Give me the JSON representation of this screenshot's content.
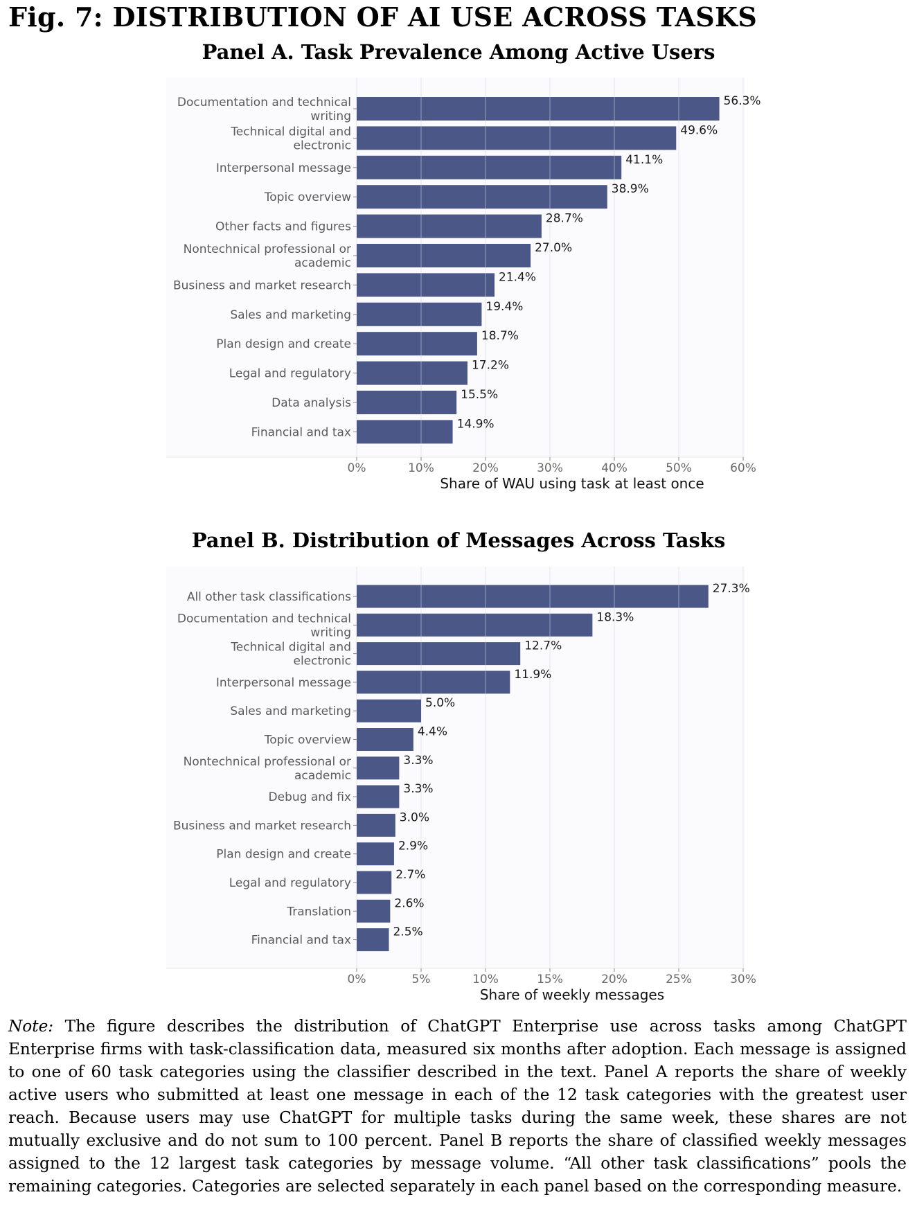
{
  "figure": {
    "title": "Fig. 7: DISTRIBUTION OF AI USE ACROSS TASKS"
  },
  "chart_data": [
    {
      "type": "bar",
      "orientation": "horizontal",
      "title": "Panel A. Task Prevalence Among Active Users",
      "xlabel": "Share of WAU using task at least once",
      "ylabel": "",
      "xlim": [
        0,
        60
      ],
      "xticks": [
        "0%",
        "10%",
        "20%",
        "30%",
        "40%",
        "50%",
        "60%"
      ],
      "grid": true,
      "bar_color": "#4a5787",
      "categories": [
        "Documentation and technical writing",
        "Technical digital and electronic",
        "Interpersonal message",
        "Topic overview",
        "Other facts and figures",
        "Nontechnical professional or academic",
        "Business and market research",
        "Sales and marketing",
        "Plan design and create",
        "Legal and regulatory",
        "Data analysis",
        "Financial and tax"
      ],
      "values": [
        56.3,
        49.6,
        41.1,
        38.9,
        28.7,
        27.0,
        21.4,
        19.4,
        18.7,
        17.2,
        15.5,
        14.9
      ],
      "labels": [
        "56.3%",
        "49.6%",
        "41.1%",
        "38.9%",
        "28.7%",
        "27.0%",
        "21.4%",
        "19.4%",
        "18.7%",
        "17.2%",
        "15.5%",
        "14.9%"
      ]
    },
    {
      "type": "bar",
      "orientation": "horizontal",
      "title": "Panel B. Distribution of Messages Across Tasks",
      "xlabel": "Share of weekly messages",
      "ylabel": "",
      "xlim": [
        0,
        30
      ],
      "xticks": [
        "0%",
        "5%",
        "10%",
        "15%",
        "20%",
        "25%",
        "30%"
      ],
      "grid": true,
      "bar_color": "#4a5787",
      "categories": [
        "All other task classifications",
        "Documentation and technical writing",
        "Technical digital and electronic",
        "Interpersonal message",
        "Sales and marketing",
        "Topic overview",
        "Nontechnical professional or academic",
        "Debug and fix",
        "Business and market research",
        "Plan design and create",
        "Legal and regulatory",
        "Translation",
        "Financial and tax"
      ],
      "values": [
        27.3,
        18.3,
        12.7,
        11.9,
        5.0,
        4.4,
        3.3,
        3.3,
        3.0,
        2.9,
        2.7,
        2.6,
        2.5
      ],
      "labels": [
        "27.3%",
        "18.3%",
        "12.7%",
        "11.9%",
        "5.0%",
        "4.4%",
        "3.3%",
        "3.3%",
        "3.0%",
        "2.9%",
        "2.7%",
        "2.6%",
        "2.5%"
      ]
    }
  ],
  "note": {
    "lead": "Note:",
    "text": " The figure describes the distribution of ChatGPT Enterprise use across tasks among ChatGPT Enterprise firms with task-classification data, measured six months after adoption. Each message is assigned to one of 60 task categories using the classifier described in the text. Panel A reports the share of weekly active users who submitted at least one message in each of the 12 task categories with the greatest user reach. Because users may use ChatGPT for multiple tasks during the same week, these shares are not mutually exclusive and do not sum to 100 percent. Panel B reports the share of classified weekly messages assigned to the 12 largest task categories by message volume. “All other task classifications” pools the remaining categories. Categories are selected separately in each panel based on the corresponding measure."
  }
}
